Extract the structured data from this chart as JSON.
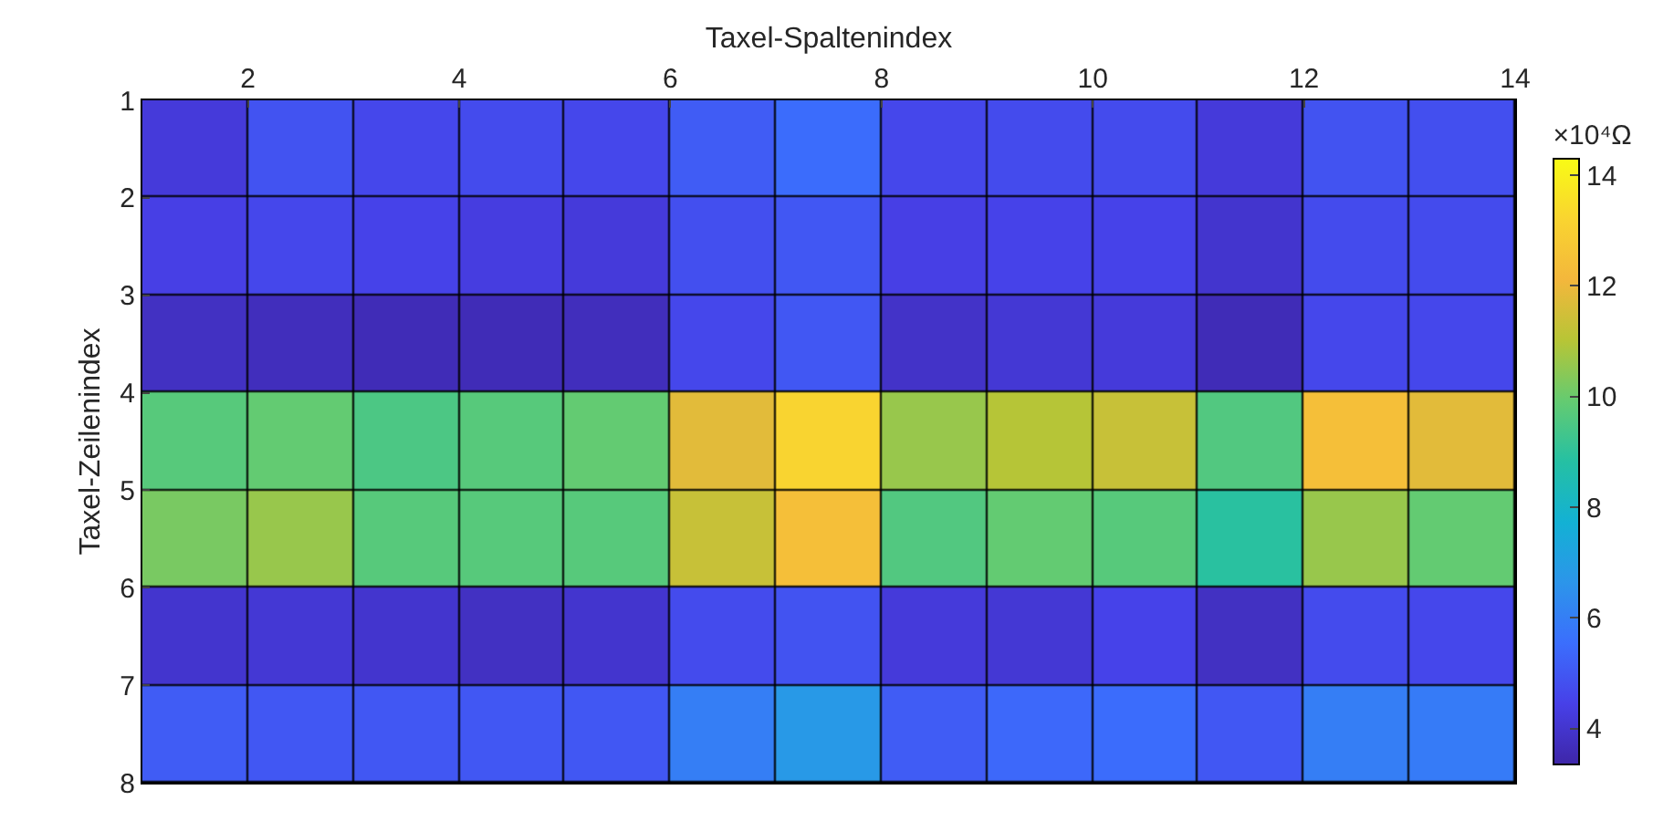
{
  "chart_data": {
    "type": "heatmap",
    "xlabel": "Taxel-Spaltenindex",
    "ylabel": "Taxel-Zeilenindex",
    "clabel": "×10⁴Ω",
    "xlim": [
      1,
      14
    ],
    "xticks": [
      2,
      4,
      6,
      8,
      10,
      12,
      14
    ],
    "ylim": [
      8,
      1
    ],
    "yticks": [
      1,
      2,
      3,
      4,
      5,
      6,
      7,
      8
    ],
    "clim": [
      3.35,
      14.3
    ],
    "cticks": [
      4,
      6,
      8,
      10,
      12,
      14
    ],
    "cells": [
      [
        4.2,
        4.9,
        4.6,
        4.7,
        4.6,
        5.1,
        5.5,
        4.6,
        4.7,
        4.7,
        4.2,
        4.9,
        4.8
      ],
      [
        4.4,
        4.6,
        4.5,
        4.3,
        4.2,
        4.8,
        5.0,
        4.4,
        4.5,
        4.5,
        4.0,
        4.7,
        4.7
      ],
      [
        3.8,
        3.7,
        3.6,
        3.6,
        3.7,
        4.6,
        5.0,
        3.9,
        4.1,
        4.2,
        3.6,
        4.6,
        4.6
      ],
      [
        9.7,
        9.9,
        9.5,
        9.7,
        9.9,
        11.8,
        13.2,
        10.6,
        11.0,
        11.3,
        9.6,
        12.4,
        11.8
      ],
      [
        10.2,
        10.6,
        9.7,
        9.7,
        9.7,
        11.3,
        12.4,
        9.6,
        9.9,
        9.7,
        8.9,
        10.6,
        9.9
      ],
      [
        4.0,
        4.1,
        4.0,
        3.8,
        4.0,
        4.7,
        4.9,
        4.2,
        4.1,
        4.5,
        3.8,
        4.7,
        4.6
      ],
      [
        5.1,
        5.0,
        5.0,
        5.0,
        5.0,
        6.0,
        6.8,
        5.1,
        5.4,
        5.5,
        5.0,
        6.0,
        5.9
      ]
    ]
  }
}
